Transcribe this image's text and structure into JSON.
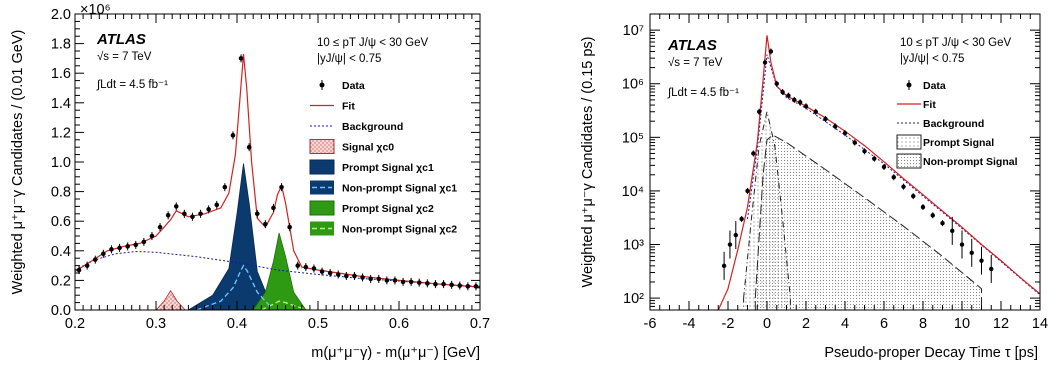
{
  "chart_data": [
    {
      "type": "line",
      "panel": "left",
      "xlabel": "m(μ⁺μ⁻γ) - m(μ⁺μ⁻) [GeV]",
      "ylabel": "Weighted μ⁺μ⁻γ Candidates / (0.01 GeV)",
      "xlim": [
        0.2,
        0.7
      ],
      "ylim": [
        0,
        2000000
      ],
      "y_exponent_label": "×10⁶",
      "x_ticks": [
        "0.2",
        "0.3",
        "0.4",
        "0.5",
        "0.6",
        "0.7"
      ],
      "y_ticks": [
        "0.0",
        "0.2",
        "0.4",
        "0.6",
        "0.8",
        "1.0",
        "1.2",
        "1.4",
        "1.6",
        "1.8",
        "2.0"
      ],
      "y_tick_values": [
        0,
        0.2,
        0.4,
        0.6,
        0.8,
        1.0,
        1.2,
        1.4,
        1.6,
        1.8,
        2.0
      ],
      "experiment": "ATLAS",
      "energy": "√s = 7 TeV",
      "lumi": "∫Ldt = 4.5 fb⁻¹",
      "cut_pt": "10 ≤ pT J/ψ < 30 GeV",
      "cut_y": "|yJ/ψ| < 0.75",
      "legend": [
        "Data",
        "Fit",
        "Background",
        "Signal χc0",
        "Prompt Signal χc1",
        "Non-prompt Signal χc1",
        "Prompt Signal χc2",
        "Non-prompt Signal χc2"
      ],
      "series": [
        {
          "name": "Data",
          "x": [
            0.205,
            0.215,
            0.225,
            0.235,
            0.245,
            0.255,
            0.265,
            0.275,
            0.285,
            0.295,
            0.305,
            0.315,
            0.325,
            0.335,
            0.345,
            0.355,
            0.365,
            0.375,
            0.385,
            0.395,
            0.405,
            0.415,
            0.425,
            0.435,
            0.445,
            0.455,
            0.465,
            0.475,
            0.485,
            0.495,
            0.505,
            0.515,
            0.525,
            0.535,
            0.545,
            0.555,
            0.565,
            0.575,
            0.585,
            0.595,
            0.605,
            0.615,
            0.625,
            0.635,
            0.645,
            0.655,
            0.665,
            0.675,
            0.685,
            0.695
          ],
          "y": [
            270000,
            300000,
            340000,
            380000,
            410000,
            420000,
            430000,
            440000,
            460000,
            500000,
            560000,
            640000,
            700000,
            650000,
            630000,
            650000,
            680000,
            710000,
            830000,
            1180000,
            1700000,
            1100000,
            650000,
            580000,
            690000,
            830000,
            560000,
            300000,
            290000,
            280000,
            260000,
            250000,
            240000,
            230000,
            230000,
            220000,
            210000,
            210000,
            200000,
            200000,
            190000,
            190000,
            185000,
            180000,
            175000,
            175000,
            170000,
            165000,
            160000,
            160000
          ]
        },
        {
          "name": "Fit",
          "x": [
            0.2,
            0.22,
            0.24,
            0.26,
            0.28,
            0.3,
            0.31,
            0.318,
            0.325,
            0.34,
            0.36,
            0.38,
            0.39,
            0.398,
            0.404,
            0.408,
            0.412,
            0.418,
            0.425,
            0.435,
            0.445,
            0.45,
            0.455,
            0.46,
            0.47,
            0.48,
            0.5,
            0.55,
            0.6,
            0.65,
            0.7
          ],
          "y": [
            260000,
            330000,
            400000,
            430000,
            450000,
            500000,
            560000,
            610000,
            670000,
            630000,
            650000,
            690000,
            790000,
            1050000,
            1450000,
            1730000,
            1500000,
            1000000,
            620000,
            560000,
            660000,
            780000,
            840000,
            720000,
            400000,
            290000,
            270000,
            230000,
            200000,
            175000,
            155000
          ]
        },
        {
          "name": "Background",
          "x": [
            0.2,
            0.225,
            0.25,
            0.275,
            0.3,
            0.35,
            0.4,
            0.45,
            0.5,
            0.55,
            0.6,
            0.65,
            0.7
          ],
          "y": [
            270000,
            340000,
            380000,
            395000,
            390000,
            360000,
            320000,
            270000,
            240000,
            215000,
            195000,
            175000,
            160000
          ]
        },
        {
          "name": "Signal χc0",
          "x": [
            0.3,
            0.31,
            0.318,
            0.326,
            0.336
          ],
          "y": [
            0,
            60000,
            130000,
            60000,
            0
          ]
        },
        {
          "name": "Prompt Signal χc1",
          "x": [
            0.34,
            0.37,
            0.39,
            0.4,
            0.408,
            0.415,
            0.425,
            0.44,
            0.46
          ],
          "y": [
            0,
            100000,
            280000,
            650000,
            990000,
            720000,
            260000,
            60000,
            0
          ]
        },
        {
          "name": "Non-prompt Signal χc1",
          "x": [
            0.35,
            0.38,
            0.395,
            0.405,
            0.408,
            0.413,
            0.425,
            0.44
          ],
          "y": [
            0,
            60000,
            150000,
            270000,
            300000,
            260000,
            120000,
            30000
          ]
        },
        {
          "name": "Prompt Signal χc2",
          "x": [
            0.42,
            0.435,
            0.445,
            0.452,
            0.46,
            0.47,
            0.485
          ],
          "y": [
            0,
            120000,
            330000,
            520000,
            360000,
            120000,
            0
          ]
        },
        {
          "name": "Non-prompt Signal χc2",
          "x": [
            0.43,
            0.445,
            0.452,
            0.46,
            0.475,
            0.49
          ],
          "y": [
            0,
            40000,
            60000,
            50000,
            20000,
            0
          ]
        }
      ]
    },
    {
      "type": "line",
      "panel": "right",
      "xlabel": "Pseudo-proper Decay Time τ [ps]",
      "ylabel": "Weighted μ⁺μ⁻γ Candidates / (0.15 ps)",
      "xlim": [
        -6,
        14
      ],
      "ylim": [
        60,
        20000000
      ],
      "yscale": "log",
      "x_ticks": [
        "-6",
        "-4",
        "-2",
        "0",
        "2",
        "4",
        "6",
        "8",
        "10",
        "12",
        "14"
      ],
      "x_tick_values": [
        -6,
        -4,
        -2,
        0,
        2,
        4,
        6,
        8,
        10,
        12,
        14
      ],
      "y_ticks": [
        "10²",
        "10³",
        "10⁴",
        "10⁵",
        "10⁶",
        "10⁷"
      ],
      "y_tick_values": [
        100,
        1000,
        10000,
        100000,
        1000000,
        10000000
      ],
      "experiment": "ATLAS",
      "energy": "√s = 7 TeV",
      "lumi": "∫Ldt = 4.5 fb⁻¹",
      "cut_pt": "10 ≤ pT J/ψ < 30 GeV",
      "cut_y": "|yJ/ψ| < 0.75",
      "legend": [
        "Data",
        "Fit",
        "Background",
        "Prompt Signal",
        "Non-prompt Signal"
      ],
      "series": [
        {
          "name": "Data",
          "x": [
            -2.2,
            -1.9,
            -1.6,
            -1.3,
            -1.0,
            -0.7,
            -0.4,
            -0.1,
            0.2,
            0.5,
            0.8,
            1.1,
            1.4,
            1.7,
            2.0,
            2.5,
            3.0,
            3.5,
            4.0,
            4.5,
            5.0,
            5.5,
            6.0,
            6.5,
            7.0,
            7.5,
            8.0,
            8.5,
            9.0,
            9.5,
            10.0,
            10.5,
            11.0,
            11.5
          ],
          "y": [
            400,
            1000,
            1500,
            3000,
            10000,
            50000,
            300000,
            2500000,
            4000000,
            1000000,
            700000,
            600000,
            500000,
            450000,
            380000,
            300000,
            220000,
            160000,
            120000,
            80000,
            55000,
            40000,
            28000,
            18000,
            12000,
            8000,
            5000,
            3500,
            2500,
            1800,
            1000,
            700,
            500,
            350
          ]
        },
        {
          "name": "Fit",
          "x": [
            -2.5,
            -2,
            -1.5,
            -1,
            -0.5,
            -0.2,
            0,
            0.2,
            0.5,
            1,
            2,
            3,
            4,
            5,
            6,
            7,
            8,
            9,
            10,
            11,
            12,
            13,
            14
          ],
          "y": [
            60,
            150,
            800,
            5000,
            80000,
            1200000,
            8000000,
            2500000,
            900000,
            600000,
            380000,
            230000,
            130000,
            70000,
            35000,
            17000,
            8500,
            4200,
            2100,
            1000,
            500,
            240,
            120
          ]
        },
        {
          "name": "Background",
          "x": [
            -1,
            -0.5,
            0,
            0.5,
            1,
            2,
            4,
            6,
            8,
            10,
            12,
            14
          ],
          "y": [
            3000,
            60000,
            3500000,
            900000,
            550000,
            350000,
            110000,
            32000,
            8000,
            2000,
            480,
            115
          ]
        },
        {
          "name": "Prompt Signal",
          "x": [
            -1.2,
            -0.8,
            -0.4,
            0,
            0.4,
            0.8,
            1.2
          ],
          "y": [
            100,
            3000,
            70000,
            300000,
            70000,
            3000,
            100
          ]
        },
        {
          "name": "Non-prompt Signal",
          "x": [
            -0.6,
            -0.2,
            0,
            0.3,
            1,
            3,
            5,
            7,
            9,
            11
          ],
          "y": [
            100,
            20000,
            90000,
            110000,
            80000,
            25000,
            7500,
            2200,
            600,
            150
          ]
        }
      ]
    }
  ]
}
